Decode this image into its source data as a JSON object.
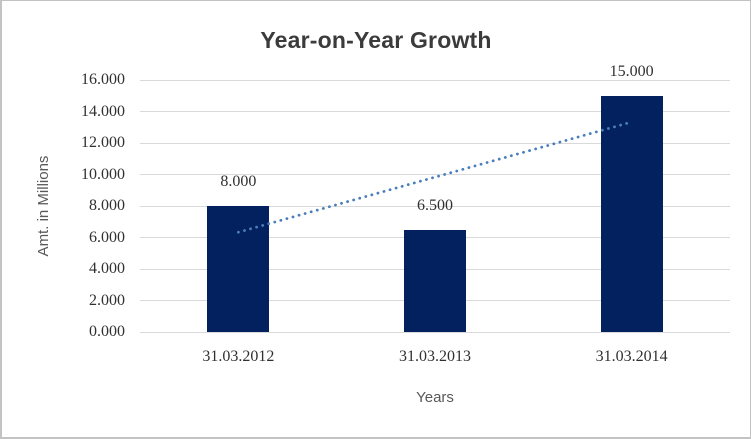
{
  "chart": {
    "title": "Year-on-Year Growth",
    "y_axis_title": "Amt. in Millions",
    "x_axis_title": "Years"
  },
  "chart_data": {
    "type": "bar",
    "title": "Year-on-Year Growth",
    "xlabel": "Years",
    "ylabel": "Amt. in Millions",
    "categories": [
      "31.03.2012",
      "31.03.2013",
      "31.03.2014"
    ],
    "values": [
      8.0,
      6.5,
      15.0
    ],
    "value_labels": [
      "8.000",
      "6.500",
      "15.000"
    ],
    "ylim": [
      0,
      16
    ],
    "y_tick_step": 2,
    "y_ticks": [
      0,
      2,
      4,
      6,
      8,
      10,
      12,
      14,
      16
    ],
    "y_tick_labels": [
      "0.000",
      "2.000",
      "4.000",
      "6.000",
      "8.000",
      "10.000",
      "12.000",
      "14.000",
      "16.000"
    ],
    "grid": "horizontal",
    "legend": "none",
    "trendline": {
      "type": "linear",
      "style": "dotted",
      "fit_values_at_ends": [
        6.333,
        13.333
      ]
    },
    "colors": {
      "bar": "#03215f",
      "trendline": "#4a7ebb",
      "gridline": "#d9d9d9",
      "title_text": "#3b3b3b",
      "axis_title_text": "#595959",
      "number_text": "#303030"
    }
  }
}
